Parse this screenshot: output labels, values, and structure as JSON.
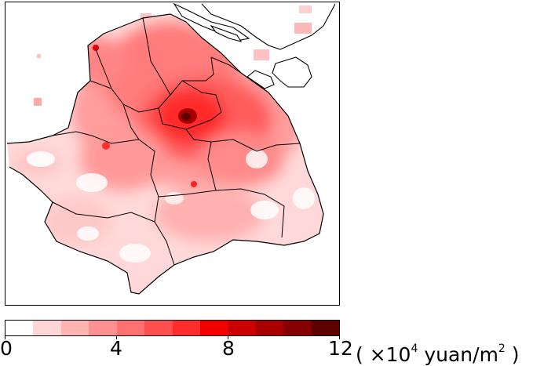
{
  "map": {
    "colorbar": {
      "ticks": [
        "0",
        "4",
        "8",
        "12"
      ],
      "units_prefix": "( ×10",
      "units_exp": "4",
      "units_mid": " yuan/m",
      "units_exp2": "2",
      "units_suffix": " )",
      "range": [
        0,
        12
      ],
      "levels": 12,
      "colors": [
        "#ffffff",
        "#ffd6d6",
        "#ffb3b3",
        "#ff9090",
        "#ff7070",
        "#ff4f4f",
        "#ff2d2d",
        "#f20000",
        "#cc0000",
        "#a80000",
        "#850000",
        "#5e0000"
      ]
    }
  }
}
